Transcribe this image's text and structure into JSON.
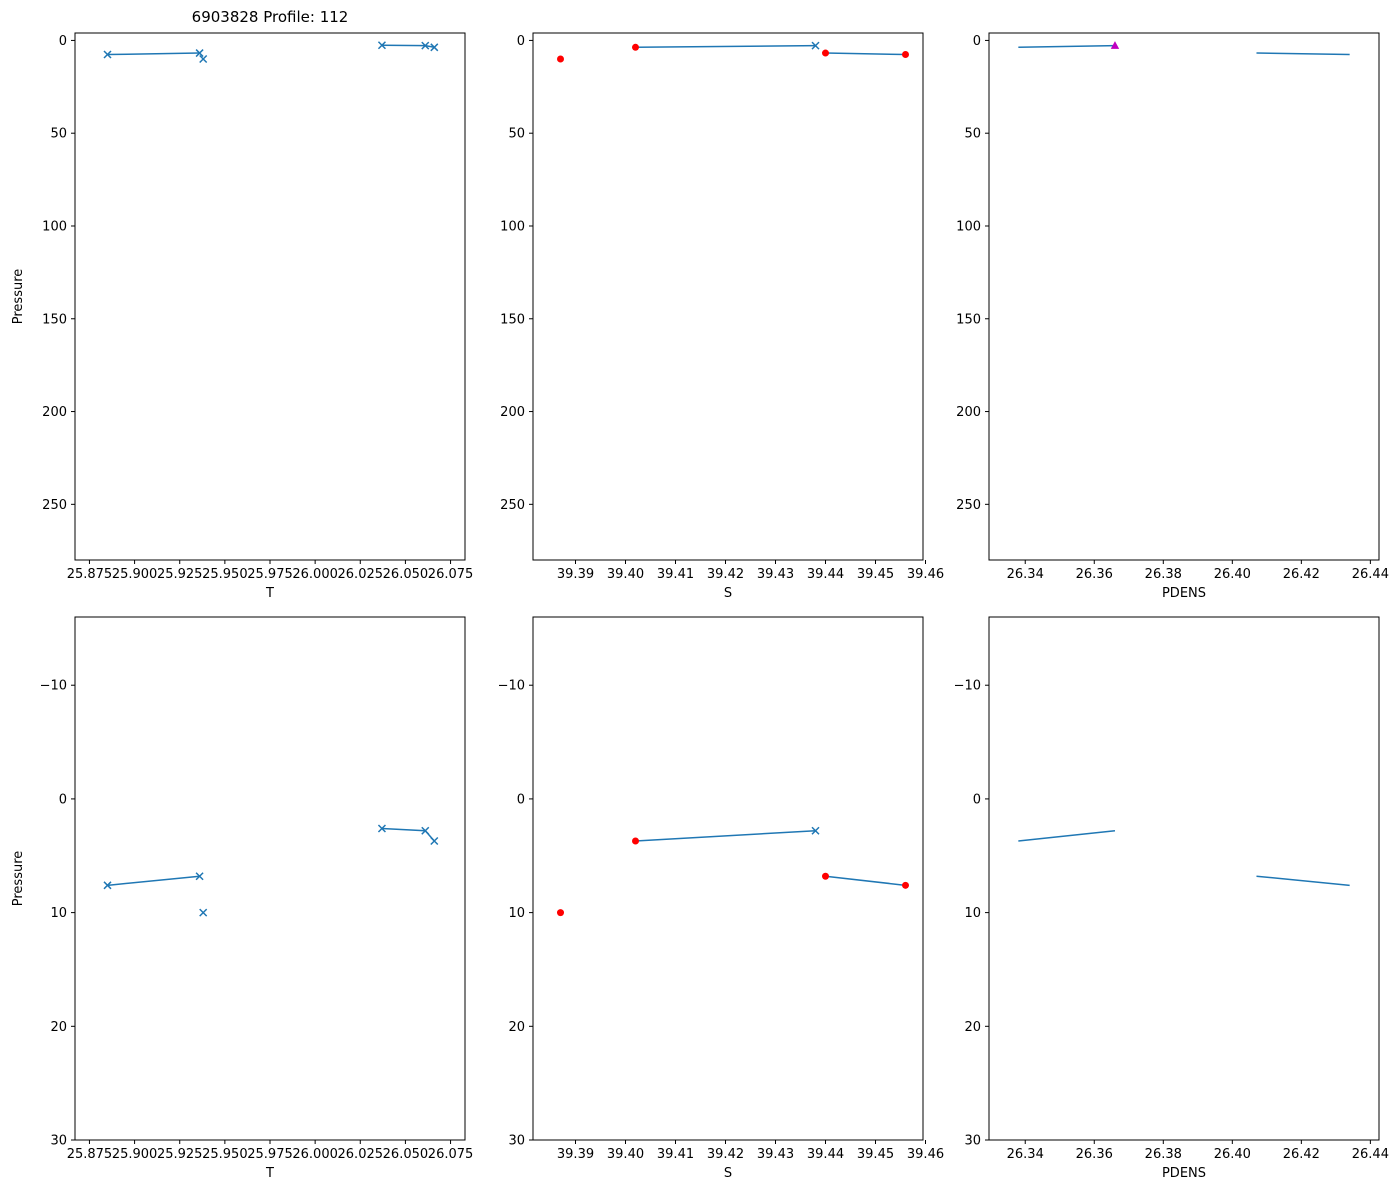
{
  "figure": {
    "title": "6903828 Profile: 112",
    "background_color": "#ffffff",
    "series_line_color": "#1f77b4",
    "flagged_marker_color": "#ff0000",
    "triangle_marker_color": "#c000c0"
  },
  "chart_data": [
    {
      "type": "line",
      "position": {
        "row": 0,
        "col": 0
      },
      "title": "6903828 Profile: 112",
      "xlabel": "T",
      "ylabel": "Pressure",
      "xlim": [
        25.867,
        26.083
      ],
      "ylim": [
        -4,
        280
      ],
      "y_inverted": true,
      "grid": false,
      "xticks": [
        25.875,
        25.9,
        25.925,
        25.95,
        25.975,
        26.0,
        26.025,
        26.05,
        26.075
      ],
      "xtick_labels": [
        "25.875",
        "25.900",
        "25.925",
        "25.950",
        "25.975",
        "26.000",
        "26.025",
        "26.050",
        "26.075"
      ],
      "yticks": [
        0,
        50,
        100,
        150,
        200,
        250
      ],
      "ytick_labels": [
        "0",
        "50",
        "100",
        "150",
        "200",
        "250"
      ],
      "series": [
        {
          "name": "t-upper-segment",
          "x": [
            25.885,
            25.936
          ],
          "y": [
            7.6,
            6.8
          ],
          "line": true,
          "marker": "x",
          "color": "#1f77b4"
        },
        {
          "name": "t-isolated-point",
          "x": [
            25.938
          ],
          "y": [
            10.0
          ],
          "line": false,
          "marker": "x",
          "color": "#1f77b4"
        },
        {
          "name": "t-surface-segment",
          "x": [
            26.037,
            26.061,
            26.066
          ],
          "y": [
            2.6,
            2.8,
            3.7
          ],
          "line": true,
          "marker": "x",
          "color": "#1f77b4"
        }
      ]
    },
    {
      "type": "line",
      "position": {
        "row": 0,
        "col": 1
      },
      "title": "",
      "xlabel": "S",
      "ylabel": "",
      "xlim": [
        39.3815,
        39.4595
      ],
      "ylim": [
        -4,
        280
      ],
      "y_inverted": true,
      "grid": false,
      "xticks": [
        39.39,
        39.4,
        39.41,
        39.42,
        39.43,
        39.44,
        39.45,
        39.46
      ],
      "xtick_labels": [
        "39.39",
        "39.40",
        "39.41",
        "39.42",
        "39.43",
        "39.44",
        "39.45",
        "39.46"
      ],
      "yticks": [
        0,
        50,
        100,
        150,
        200,
        250
      ],
      "ytick_labels": [
        "0",
        "50",
        "100",
        "150",
        "200",
        "250"
      ],
      "series": [
        {
          "name": "s-surface-segment",
          "x": [
            39.402,
            39.438
          ],
          "y": [
            3.7,
            2.8
          ],
          "line": true,
          "marker": null,
          "color": "#1f77b4"
        },
        {
          "name": "s-upper-segment",
          "x": [
            39.44,
            39.456
          ],
          "y": [
            6.8,
            7.6
          ],
          "line": true,
          "marker": null,
          "color": "#1f77b4"
        },
        {
          "name": "s-flagged-points",
          "x": [
            39.387,
            39.402,
            39.44,
            39.456
          ],
          "y": [
            10.0,
            3.7,
            6.8,
            7.6
          ],
          "line": false,
          "marker": "o",
          "color": "#ff0000"
        },
        {
          "name": "s-good-point",
          "x": [
            39.438
          ],
          "y": [
            2.8
          ],
          "line": false,
          "marker": "x",
          "color": "#1f77b4"
        }
      ]
    },
    {
      "type": "line",
      "position": {
        "row": 0,
        "col": 2
      },
      "title": "",
      "xlabel": "PDENS",
      "ylabel": "",
      "xlim": [
        26.3295,
        26.4425
      ],
      "ylim": [
        -4,
        280
      ],
      "y_inverted": true,
      "grid": false,
      "xticks": [
        26.34,
        26.36,
        26.38,
        26.4,
        26.42,
        26.44
      ],
      "xtick_labels": [
        "26.34",
        "26.36",
        "26.38",
        "26.40",
        "26.42",
        "26.44"
      ],
      "yticks": [
        0,
        50,
        100,
        150,
        200,
        250
      ],
      "ytick_labels": [
        "0",
        "50",
        "100",
        "150",
        "200",
        "250"
      ],
      "series": [
        {
          "name": "pdens-surface-segment",
          "x": [
            26.338,
            26.366
          ],
          "y": [
            3.7,
            2.8
          ],
          "line": true,
          "marker": null,
          "color": "#1f77b4"
        },
        {
          "name": "pdens-upper-segment",
          "x": [
            26.407,
            26.434
          ],
          "y": [
            6.8,
            7.6
          ],
          "line": true,
          "marker": null,
          "color": "#1f77b4"
        },
        {
          "name": "pdens-triangle-point",
          "x": [
            26.366
          ],
          "y": [
            2.8
          ],
          "line": false,
          "marker": "^",
          "color": "#c000c0"
        }
      ]
    },
    {
      "type": "line",
      "position": {
        "row": 1,
        "col": 0
      },
      "title": "",
      "xlabel": "T",
      "ylabel": "Pressure",
      "xlim": [
        25.867,
        26.083
      ],
      "ylim": [
        -16,
        30
      ],
      "y_inverted": true,
      "grid": false,
      "xticks": [
        25.875,
        25.9,
        25.925,
        25.95,
        25.975,
        26.0,
        26.025,
        26.05,
        26.075
      ],
      "xtick_labels": [
        "25.875",
        "25.900",
        "25.925",
        "25.950",
        "25.975",
        "26.000",
        "26.025",
        "26.050",
        "26.075"
      ],
      "yticks": [
        -10,
        0,
        10,
        20,
        30
      ],
      "ytick_labels": [
        "−10",
        "0",
        "10",
        "20",
        "30"
      ],
      "series": [
        {
          "name": "t-upper-segment",
          "x": [
            25.885,
            25.936
          ],
          "y": [
            7.6,
            6.8
          ],
          "line": true,
          "marker": "x",
          "color": "#1f77b4"
        },
        {
          "name": "t-isolated-point",
          "x": [
            25.938
          ],
          "y": [
            10.0
          ],
          "line": false,
          "marker": "x",
          "color": "#1f77b4"
        },
        {
          "name": "t-surface-segment",
          "x": [
            26.037,
            26.061,
            26.066
          ],
          "y": [
            2.6,
            2.8,
            3.7
          ],
          "line": true,
          "marker": "x",
          "color": "#1f77b4"
        }
      ]
    },
    {
      "type": "line",
      "position": {
        "row": 1,
        "col": 1
      },
      "title": "",
      "xlabel": "S",
      "ylabel": "",
      "xlim": [
        39.3815,
        39.4595
      ],
      "ylim": [
        -16,
        30
      ],
      "y_inverted": true,
      "grid": false,
      "xticks": [
        39.39,
        39.4,
        39.41,
        39.42,
        39.43,
        39.44,
        39.45,
        39.46
      ],
      "xtick_labels": [
        "39.39",
        "39.40",
        "39.41",
        "39.42",
        "39.43",
        "39.44",
        "39.45",
        "39.46"
      ],
      "yticks": [
        -10,
        0,
        10,
        20,
        30
      ],
      "ytick_labels": [
        "−10",
        "0",
        "10",
        "20",
        "30"
      ],
      "series": [
        {
          "name": "s-surface-segment",
          "x": [
            39.402,
            39.438
          ],
          "y": [
            3.7,
            2.8
          ],
          "line": true,
          "marker": null,
          "color": "#1f77b4"
        },
        {
          "name": "s-upper-segment",
          "x": [
            39.44,
            39.456
          ],
          "y": [
            6.8,
            7.6
          ],
          "line": true,
          "marker": null,
          "color": "#1f77b4"
        },
        {
          "name": "s-flagged-points",
          "x": [
            39.387,
            39.402,
            39.44,
            39.456
          ],
          "y": [
            10.0,
            3.7,
            6.8,
            7.6
          ],
          "line": false,
          "marker": "o",
          "color": "#ff0000"
        },
        {
          "name": "s-good-point",
          "x": [
            39.438
          ],
          "y": [
            2.8
          ],
          "line": false,
          "marker": "x",
          "color": "#1f77b4"
        }
      ]
    },
    {
      "type": "line",
      "position": {
        "row": 1,
        "col": 2
      },
      "title": "",
      "xlabel": "PDENS",
      "ylabel": "",
      "xlim": [
        26.3295,
        26.4425
      ],
      "ylim": [
        -16,
        30
      ],
      "y_inverted": true,
      "grid": false,
      "xticks": [
        26.34,
        26.36,
        26.38,
        26.4,
        26.42,
        26.44
      ],
      "xtick_labels": [
        "26.34",
        "26.36",
        "26.38",
        "26.40",
        "26.42",
        "26.44"
      ],
      "yticks": [
        -10,
        0,
        10,
        20,
        30
      ],
      "ytick_labels": [
        "−10",
        "0",
        "10",
        "20",
        "30"
      ],
      "series": [
        {
          "name": "pdens-surface-segment",
          "x": [
            26.338,
            26.366
          ],
          "y": [
            3.7,
            2.8
          ],
          "line": true,
          "marker": null,
          "color": "#1f77b4"
        },
        {
          "name": "pdens-upper-segment",
          "x": [
            26.407,
            26.434
          ],
          "y": [
            6.8,
            7.6
          ],
          "line": true,
          "marker": null,
          "color": "#1f77b4"
        }
      ]
    }
  ]
}
